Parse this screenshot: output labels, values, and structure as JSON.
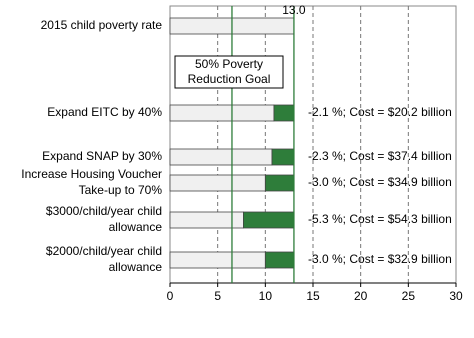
{
  "chart_data": {
    "type": "bar",
    "orientation": "horizontal",
    "stacked": true,
    "categories": [
      [
        "2015 child poverty rate"
      ],
      [
        "Expand EITC by 40%"
      ],
      [
        "Expand SNAP by 30%"
      ],
      [
        "Increase Housing Voucher",
        "Take-up to 70%"
      ],
      [
        "$3000/child/year child",
        "allowance"
      ],
      [
        "$2000/child/year child",
        "allowance"
      ]
    ],
    "series": [
      {
        "color": "#f0f0f0",
        "values": [
          13.0,
          10.9,
          10.7,
          10.0,
          7.7,
          10.0
        ],
        "value_labels": [
          "13.0",
          null,
          null,
          null,
          null,
          null
        ]
      },
      {
        "color": "#2e7d3a",
        "values": [
          null,
          2.1,
          2.3,
          3.0,
          5.3,
          3.0
        ]
      }
    ],
    "annotations": [
      null,
      "-2.1 %; Cost = $20.2 billion",
      "-2.3 %; Cost = $37.4 billion",
      "-3.0 %; Cost = $34.9 billion",
      "-5.3 %; Cost = $54.3 billion",
      "-3.0 %; Cost = $32.9 billion"
    ],
    "reference_lines": [
      {
        "value": 13.0,
        "color": "#2e7d3a"
      },
      {
        "value": 6.5,
        "color": "#2e7d3a",
        "label": [
          "50% Poverty",
          "Reduction Goal"
        ]
      }
    ],
    "xlim": [
      0,
      30
    ],
    "xticks": [
      0,
      5,
      10,
      15,
      20,
      25,
      30
    ],
    "grid": true
  }
}
